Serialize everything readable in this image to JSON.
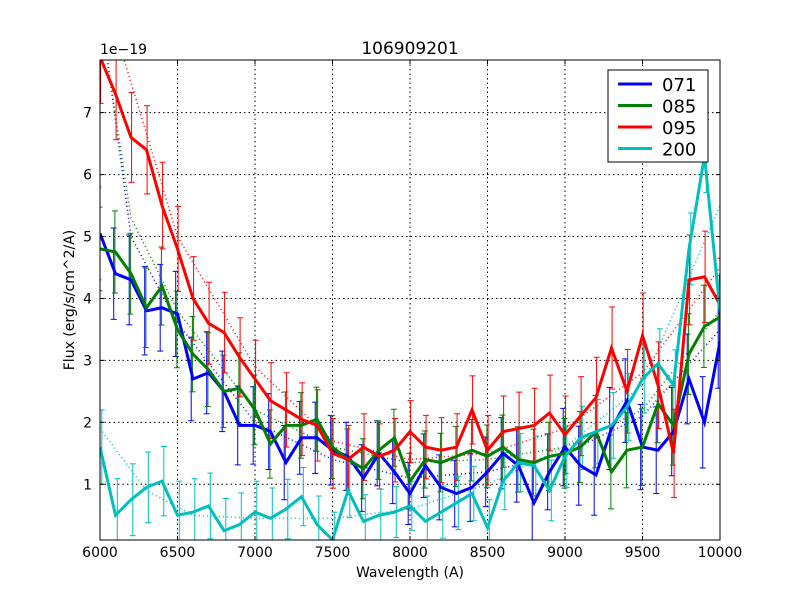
{
  "chart_data": {
    "type": "line",
    "title": "106909201",
    "xlabel": "Wavelength (A)",
    "ylabel": "Flux (erg/s/cm^2/A)",
    "y_offset_label": "1e−19",
    "xlim": [
      6000,
      10000
    ],
    "ylim": [
      0.1,
      7.85
    ],
    "xticks": [
      6000,
      6500,
      7000,
      7500,
      8000,
      8500,
      9000,
      9500,
      10000
    ],
    "yticks": [
      1,
      2,
      3,
      4,
      5,
      6,
      7
    ],
    "grid": true,
    "legend_position": "top-right",
    "x": [
      6000,
      6100,
      6200,
      6300,
      6400,
      6500,
      6600,
      6700,
      6800,
      6900,
      7000,
      7100,
      7200,
      7300,
      7400,
      7500,
      7600,
      7700,
      7800,
      7900,
      8000,
      8100,
      8200,
      8300,
      8400,
      8500,
      8600,
      8700,
      8800,
      8900,
      9000,
      9100,
      9200,
      9300,
      9400,
      9500,
      9600,
      9700,
      9800,
      9900,
      10000
    ],
    "series": [
      {
        "name": "071",
        "color": "#0000ff",
        "yerr": 0.5,
        "values": [
          5.05,
          4.4,
          4.3,
          3.8,
          3.85,
          3.75,
          2.7,
          2.8,
          2.5,
          1.95,
          1.95,
          1.85,
          1.35,
          1.75,
          1.75,
          1.55,
          1.45,
          1.1,
          1.5,
          1.2,
          0.85,
          1.3,
          0.95,
          0.85,
          0.95,
          1.2,
          1.5,
          1.3,
          0.7,
          1.2,
          1.6,
          1.3,
          1.15,
          1.9,
          2.35,
          1.6,
          1.55,
          1.85,
          2.7,
          2.0,
          3.3
        ],
        "fit": {
          "x": [
            6050,
            6200,
            6500,
            7000,
            7500,
            8000,
            8500,
            9000,
            9500,
            10000
          ],
          "y": [
            7.8,
            5.0,
            3.6,
            2.0,
            1.4,
            1.1,
            1.2,
            1.5,
            2.1,
            3.5
          ]
        }
      },
      {
        "name": "085",
        "color": "#008000",
        "yerr": 0.45,
        "values": [
          4.8,
          4.75,
          4.4,
          3.85,
          4.2,
          3.5,
          3.1,
          2.85,
          2.5,
          2.55,
          2.2,
          1.65,
          1.95,
          1.95,
          2.05,
          1.6,
          1.4,
          1.25,
          1.55,
          1.75,
          1.05,
          1.4,
          1.35,
          1.45,
          1.55,
          1.45,
          1.6,
          1.4,
          1.35,
          1.45,
          1.5,
          1.6,
          1.85,
          1.2,
          1.55,
          1.6,
          2.3,
          1.95,
          3.1,
          3.55,
          3.7
        ],
        "fit": {
          "x": [
            6050,
            6200,
            6500,
            7000,
            7500,
            8000,
            8500,
            9000,
            9500,
            10000
          ],
          "y": [
            7.8,
            5.3,
            3.8,
            2.2,
            1.6,
            1.35,
            1.4,
            1.6,
            2.2,
            3.8
          ]
        }
      },
      {
        "name": "095",
        "color": "#ff0000",
        "yerr": 0.5,
        "values": [
          7.9,
          7.3,
          6.6,
          6.4,
          5.5,
          4.8,
          4.0,
          3.6,
          3.45,
          3.05,
          2.7,
          2.35,
          2.2,
          2.05,
          1.95,
          1.5,
          1.4,
          1.6,
          1.45,
          1.55,
          1.85,
          1.6,
          1.55,
          1.6,
          2.2,
          1.55,
          1.85,
          1.9,
          1.95,
          2.15,
          1.8,
          2.1,
          2.4,
          3.2,
          2.5,
          3.4,
          2.6,
          1.5,
          4.3,
          4.35,
          3.9
        ],
        "fit": {
          "x": [
            6150,
            6500,
            7000,
            7500,
            8000,
            8500,
            9000,
            9500,
            10000
          ],
          "y": [
            7.9,
            5.0,
            2.9,
            1.7,
            1.4,
            1.5,
            1.9,
            2.8,
            4.5
          ]
        }
      },
      {
        "name": "200",
        "color": "#00bfbf",
        "yerr": 0.4,
        "values": [
          1.6,
          0.5,
          0.75,
          0.95,
          1.05,
          0.5,
          0.55,
          0.65,
          0.25,
          0.35,
          0.55,
          0.45,
          0.6,
          0.8,
          0.35,
          0.1,
          0.9,
          0.4,
          0.5,
          0.55,
          0.65,
          0.4,
          0.55,
          0.7,
          0.85,
          0.3,
          1.05,
          1.35,
          1.3,
          0.9,
          1.45,
          1.75,
          1.85,
          1.95,
          2.25,
          2.7,
          2.95,
          2.6,
          4.8,
          6.3,
          3.8
        ],
        "fit": {
          "x": [
            6000,
            6300,
            6600,
            7000,
            7500,
            8000,
            8500,
            9000,
            9500,
            10000
          ],
          "y": [
            1.9,
            0.9,
            0.5,
            0.45,
            0.45,
            0.6,
            1.0,
            1.6,
            2.6,
            5.5
          ]
        }
      }
    ]
  }
}
